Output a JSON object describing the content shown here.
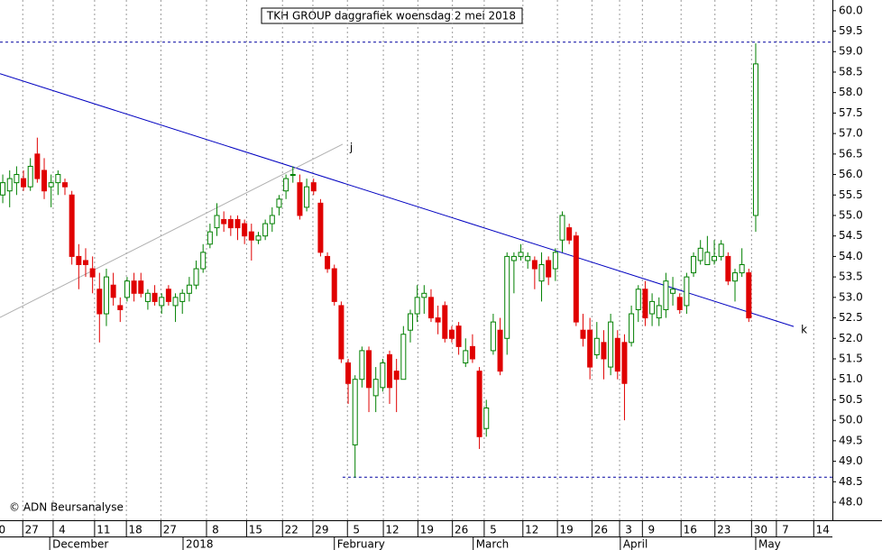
{
  "chart_data": {
    "type": "candlestick",
    "title": "TKH GROUP daggrafiek woensdag 2 mei 2018",
    "copyright": "© ADN Beursanalyse",
    "x": [
      0,
      1,
      2,
      3,
      4,
      5,
      6,
      7,
      8,
      9,
      10,
      11,
      12,
      13,
      14,
      15,
      16,
      17,
      18,
      19,
      20,
      21,
      22,
      23,
      24,
      25,
      26,
      27,
      28,
      29,
      30,
      31,
      32,
      33,
      34,
      35,
      36,
      37,
      38,
      39,
      40,
      41,
      42,
      43,
      44,
      45,
      46,
      47,
      48,
      49,
      50,
      51,
      52,
      53,
      54,
      55,
      56,
      57,
      58,
      59,
      60,
      61,
      62,
      63,
      64,
      65,
      66,
      67,
      68,
      69,
      70,
      71,
      72,
      73,
      74,
      75,
      76,
      77,
      78,
      79,
      80,
      81,
      82,
      83,
      84,
      85,
      86,
      87,
      88,
      89,
      90,
      91,
      92,
      93,
      94,
      95,
      96,
      97,
      98,
      99,
      100,
      101,
      102,
      103,
      104,
      105,
      106,
      107,
      108,
      109
    ],
    "open": [
      55.5,
      55.6,
      55.8,
      55.9,
      55.7,
      56.5,
      56.1,
      55.7,
      55.8,
      55.8,
      55.5,
      54.0,
      53.9,
      53.7,
      53.2,
      52.6,
      53.3,
      52.8,
      53.0,
      53.4,
      53.4,
      52.9,
      53.1,
      52.8,
      53.2,
      52.8,
      52.9,
      53.1,
      53.3,
      53.7,
      54.3,
      54.7,
      54.9,
      54.9,
      54.9,
      54.8,
      54.6,
      54.4,
      54.5,
      54.8,
      55.2,
      55.6,
      56.0,
      55.8,
      55.2,
      55.8,
      55.3,
      54.0,
      53.7,
      52.8,
      51.4,
      49.4,
      51.0,
      51.7,
      50.6,
      50.8,
      51.6,
      51.2,
      51.0,
      52.2,
      52.6,
      53.0,
      53.0,
      52.5,
      52.8,
      52.2,
      52.3,
      51.4,
      51.8,
      51.2,
      49.8,
      51.7,
      52.2,
      52.0,
      53.9,
      54.0,
      53.9,
      53.9,
      53.4,
      53.9,
      53.7,
      54.4,
      54.7,
      54.5,
      52.2,
      52.2,
      51.6,
      51.9,
      51.3,
      52.0,
      51.9,
      51.9,
      52.7,
      53.2,
      52.6,
      52.5,
      52.7,
      53.1,
      53.0,
      52.8,
      53.6,
      53.9,
      53.8,
      53.9,
      54.0,
      54.0,
      53.4,
      53.6,
      53.6,
      55.0
    ],
    "high": [
      56.0,
      56.1,
      56.2,
      56.1,
      56.4,
      56.9,
      56.4,
      56.0,
      56.1,
      55.9,
      55.6,
      54.3,
      54.2,
      54.0,
      53.6,
      53.7,
      53.6,
      53.0,
      53.5,
      53.6,
      53.6,
      53.2,
      53.3,
      53.1,
      53.3,
      53.1,
      53.2,
      53.5,
      53.9,
      54.3,
      54.8,
      55.3,
      55.1,
      55.0,
      55.0,
      54.9,
      54.8,
      54.6,
      54.9,
      55.2,
      55.5,
      56.0,
      56.2,
      56.0,
      55.9,
      55.9,
      55.4,
      54.1,
      53.8,
      52.9,
      51.5,
      51.1,
      51.8,
      51.8,
      51.3,
      51.5,
      51.7,
      51.5,
      52.3,
      52.7,
      53.3,
      53.3,
      53.2,
      52.8,
      52.9,
      52.3,
      52.4,
      52.0,
      52.1,
      51.3,
      50.5,
      52.6,
      52.5,
      54.1,
      54.1,
      54.3,
      54.1,
      54.0,
      54.1,
      54.0,
      54.2,
      55.1,
      54.8,
      54.6,
      52.6,
      52.5,
      52.4,
      52.2,
      52.6,
      52.2,
      52.1,
      52.8,
      53.3,
      53.4,
      53.1,
      53.0,
      53.6,
      53.5,
      53.1,
      53.6,
      54.1,
      54.4,
      54.5,
      54.4,
      54.4,
      54.1,
      53.7,
      54.2,
      53.7,
      59.2
    ],
    "low": [
      55.3,
      55.2,
      55.5,
      55.6,
      55.6,
      55.8,
      55.4,
      55.2,
      55.5,
      55.5,
      53.8,
      53.2,
      53.5,
      53.1,
      51.9,
      52.3,
      52.8,
      52.4,
      52.9,
      52.9,
      53.0,
      52.7,
      52.8,
      52.6,
      52.8,
      52.4,
      52.6,
      52.9,
      53.2,
      53.6,
      54.2,
      54.5,
      54.6,
      54.5,
      54.4,
      54.3,
      53.9,
      54.3,
      54.4,
      54.6,
      55.0,
      55.4,
      55.8,
      54.9,
      55.1,
      55.5,
      54.0,
      53.6,
      52.8,
      51.4,
      50.4,
      48.6,
      50.8,
      50.2,
      50.2,
      50.7,
      50.4,
      50.2,
      51.0,
      51.9,
      52.4,
      52.6,
      52.4,
      52.1,
      51.9,
      51.9,
      51.6,
      51.3,
      51.4,
      49.3,
      49.6,
      51.6,
      51.1,
      51.6,
      53.1,
      53.9,
      53.7,
      53.2,
      52.9,
      53.3,
      53.4,
      54.1,
      54.3,
      52.3,
      51.8,
      51.0,
      51.5,
      51.0,
      51.1,
      51.0,
      50.0,
      51.8,
      52.4,
      52.3,
      52.3,
      52.3,
      52.5,
      52.8,
      52.6,
      52.6,
      53.5,
      53.8,
      53.8,
      53.8,
      53.9,
      53.3,
      52.9,
      53.5,
      52.4,
      54.6
    ],
    "close": [
      55.8,
      55.9,
      56.0,
      55.7,
      56.2,
      55.9,
      55.6,
      55.8,
      56.0,
      55.7,
      54.0,
      53.8,
      53.8,
      53.5,
      52.6,
      53.5,
      53.0,
      52.7,
      53.4,
      53.1,
      53.1,
      53.1,
      52.9,
      53.0,
      52.9,
      53.0,
      53.1,
      53.3,
      53.7,
      54.1,
      54.6,
      55.0,
      54.8,
      54.7,
      54.7,
      54.5,
      54.4,
      54.5,
      54.8,
      55.0,
      55.4,
      55.9,
      56.0,
      55.0,
      55.7,
      55.6,
      54.1,
      53.7,
      52.9,
      51.5,
      50.9,
      51.0,
      51.7,
      50.8,
      51.0,
      51.4,
      50.8,
      51.0,
      52.1,
      52.6,
      53.0,
      53.1,
      52.5,
      52.4,
      52.0,
      52.0,
      51.8,
      51.7,
      51.5,
      49.6,
      50.3,
      52.4,
      51.2,
      54.0,
      54.0,
      54.1,
      54.0,
      53.7,
      53.8,
      53.5,
      54.1,
      55.0,
      54.4,
      52.4,
      52.0,
      51.3,
      52.0,
      51.5,
      52.4,
      51.2,
      50.9,
      52.6,
      53.2,
      52.5,
      52.9,
      52.8,
      53.4,
      53.2,
      52.7,
      53.5,
      54.0,
      54.2,
      54.1,
      54.0,
      54.3,
      53.4,
      53.6,
      53.8,
      52.5,
      58.7
    ],
    "up_color": "#008000",
    "down_color": "#e00000",
    "xlim": [
      -0.4,
      120.1
    ],
    "ylim": [
      47.56,
      60.26
    ],
    "xticks": [
      {
        "value": -0.1,
        "label": "0"
      },
      {
        "value": 4.2,
        "label": "27"
      },
      {
        "value": 8.6,
        "label": "4"
      },
      {
        "value": 14.6,
        "label": "11"
      },
      {
        "value": 19.2,
        "label": "18"
      },
      {
        "value": 24.2,
        "label": "27"
      },
      {
        "value": 30.8,
        "label": "8"
      },
      {
        "value": 36.6,
        "label": "15"
      },
      {
        "value": 41.8,
        "label": "22"
      },
      {
        "value": 46.2,
        "label": "29"
      },
      {
        "value": 51.2,
        "label": "5"
      },
      {
        "value": 56.4,
        "label": "12"
      },
      {
        "value": 61.4,
        "label": "19"
      },
      {
        "value": 66.4,
        "label": "26"
      },
      {
        "value": 71.0,
        "label": "5"
      },
      {
        "value": 76.6,
        "label": "12"
      },
      {
        "value": 81.6,
        "label": "19"
      },
      {
        "value": 86.6,
        "label": "26"
      },
      {
        "value": 90.6,
        "label": "3"
      },
      {
        "value": 93.9,
        "label": "9"
      },
      {
        "value": 99.5,
        "label": "16"
      },
      {
        "value": 104.4,
        "label": "23"
      },
      {
        "value": 109.7,
        "label": "30"
      },
      {
        "value": 113.3,
        "label": "7"
      },
      {
        "value": 118.7,
        "label": "14"
      }
    ],
    "months": [
      {
        "value": 6.8,
        "label": "December"
      },
      {
        "value": 26.1,
        "label": "2018"
      },
      {
        "value": 48.0,
        "label": "February"
      },
      {
        "value": 68.1,
        "label": "March"
      },
      {
        "value": 89.4,
        "label": "April"
      },
      {
        "value": 109.0,
        "label": "May"
      }
    ],
    "yticks": [
      {
        "value": 48,
        "label": "48.0"
      },
      48.5,
      {
        "value": 49,
        "label": "49.0"
      },
      49.5,
      {
        "value": 50,
        "label": "50.0"
      },
      50.5,
      {
        "value": 51,
        "label": "51.0"
      },
      51.5,
      {
        "value": 52,
        "label": "52.0"
      },
      52.5,
      {
        "value": 53,
        "label": "53.0"
      },
      53.5,
      {
        "value": 54,
        "label": "54.0"
      },
      54.5,
      {
        "value": 55,
        "label": "55.0"
      },
      55.5,
      {
        "value": 56,
        "label": "56.0"
      },
      56.5,
      {
        "value": 57,
        "label": "57.0"
      },
      57.5,
      {
        "value": 58,
        "label": "58.0"
      },
      58.5,
      {
        "value": 59,
        "label": "59.0"
      },
      59.5,
      {
        "value": 60,
        "label": "60.0"
      }
    ],
    "lines": [
      {
        "name": "k",
        "x": [
          -0.4,
          114.5
        ],
        "y": [
          58.46,
          52.29
        ],
        "color": "#0000c0",
        "dash": false
      },
      {
        "name": "j",
        "x": [
          -0.4,
          49.2
        ],
        "y": [
          52.51,
          56.74
        ],
        "color": "#b0b0b0",
        "dash": false
      },
      {
        "x": [
          -0.4,
          120.1
        ],
        "y": [
          59.23,
          59.23
        ],
        "color": "#0000a0",
        "dash": true
      },
      {
        "x": [
          49.2,
          120.1
        ],
        "y": [
          48.61,
          48.61
        ],
        "color": "#0000a0",
        "dash": true
      }
    ]
  }
}
